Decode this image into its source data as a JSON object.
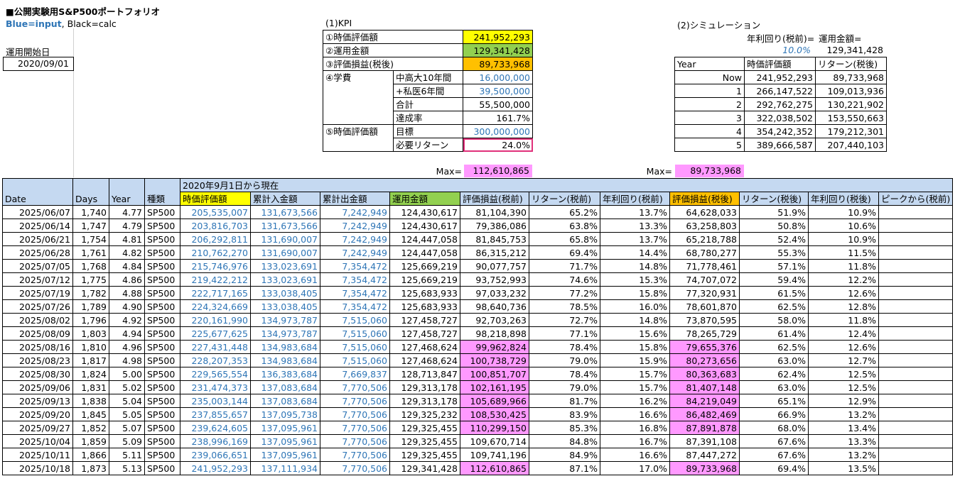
{
  "title": "■公開実験用S&P500ポートフォリオ",
  "legend": {
    "blue": "Blue=input",
    "sep": ",",
    "black": " Black=calc"
  },
  "start_label": "運用開始日",
  "start_date": "2020/09/01",
  "kpi": {
    "title": "(1)KPI",
    "rows": [
      {
        "label": "①時価評価額",
        "sub": "",
        "value": "241,952,293",
        "hl": "yel",
        "blue": false
      },
      {
        "label": "②運用金額",
        "sub": "",
        "value": "129,341,428",
        "hl": "grn",
        "blue": false
      },
      {
        "label": "③評価損益(税後)",
        "sub": "",
        "value": "89,733,968",
        "hl": "org",
        "blue": false
      },
      {
        "label": "④学費",
        "sub": "中高大10年間",
        "value": "16,000,000",
        "hl": "",
        "blue": true
      },
      {
        "label": "",
        "sub": "+私医6年間",
        "value": "39,500,000",
        "hl": "",
        "blue": true
      },
      {
        "label": "",
        "sub": "合計",
        "value": "55,500,000",
        "hl": "",
        "blue": false
      },
      {
        "label": "",
        "sub": "達成率",
        "value": "161.7%",
        "hl": "",
        "blue": false
      },
      {
        "label": "⑤時価評価額",
        "sub": "目標",
        "value": "300,000,000",
        "hl": "",
        "blue": true
      },
      {
        "label": "",
        "sub": "必要リターン",
        "value": "24.0%",
        "hl": "box",
        "blue": false
      }
    ]
  },
  "sim": {
    "title": "(2)シミュレーション",
    "rate_label": "年利回り(税前)=",
    "amount_label": "運用金額=",
    "rate": "10.0%",
    "amount": "129,341,428",
    "headers": [
      "Year",
      "時価評価額",
      "リターン(税後)"
    ],
    "rows": [
      [
        "Now",
        "241,952,293",
        "89,733,968"
      ],
      [
        "1",
        "266,147,522",
        "109,013,936"
      ],
      [
        "2",
        "292,762,275",
        "130,221,902"
      ],
      [
        "3",
        "322,038,502",
        "153,550,663"
      ],
      [
        "4",
        "354,242,352",
        "179,212,301"
      ],
      [
        "5",
        "389,666,587",
        "207,440,103"
      ]
    ]
  },
  "max": {
    "label": "Max=",
    "pre_tax": "112,610,865",
    "post_tax": "89,733,968"
  },
  "table": {
    "period": "2020年9月1日から現在",
    "headers": [
      "Date",
      "Days",
      "Year",
      "種類",
      "時価評価額",
      "累計入金額",
      "累計出金額",
      "運用金額",
      "評価損益(税前)",
      "リターン(税前)",
      "年利回り(税前)",
      "評価損益(税後)",
      "リターン(税後)",
      "年利回り(税後)",
      "ピークから(税前)"
    ],
    "rows": [
      [
        "2025/06/07",
        "1,740",
        "4.77",
        "SP500",
        "205,535,007",
        "131,673,566",
        "7,242,949",
        "124,430,617",
        "81,104,390",
        "65.2%",
        "13.7%",
        "64,628,033",
        "51.9%",
        "10.9%",
        ""
      ],
      [
        "2025/06/14",
        "1,747",
        "4.79",
        "SP500",
        "203,816,703",
        "131,673,566",
        "7,242,949",
        "124,430,617",
        "79,386,086",
        "63.8%",
        "13.3%",
        "63,258,803",
        "50.8%",
        "10.6%",
        ""
      ],
      [
        "2025/06/21",
        "1,754",
        "4.81",
        "SP500",
        "206,292,811",
        "131,690,007",
        "7,242,949",
        "124,447,058",
        "81,845,753",
        "65.8%",
        "13.7%",
        "65,218,788",
        "52.4%",
        "10.9%",
        ""
      ],
      [
        "2025/06/28",
        "1,761",
        "4.82",
        "SP500",
        "210,762,270",
        "131,690,007",
        "7,242,949",
        "124,447,058",
        "86,315,212",
        "69.4%",
        "14.4%",
        "68,780,277",
        "55.3%",
        "11.5%",
        ""
      ],
      [
        "2025/07/05",
        "1,768",
        "4.84",
        "SP500",
        "215,746,976",
        "133,023,691",
        "7,354,472",
        "125,669,219",
        "90,077,757",
        "71.7%",
        "14.8%",
        "71,778,461",
        "57.1%",
        "11.8%",
        ""
      ],
      [
        "2025/07/12",
        "1,775",
        "4.86",
        "SP500",
        "219,422,212",
        "133,023,691",
        "7,354,472",
        "125,669,219",
        "93,752,993",
        "74.6%",
        "15.3%",
        "74,707,072",
        "59.4%",
        "12.2%",
        ""
      ],
      [
        "2025/07/19",
        "1,782",
        "4.88",
        "SP500",
        "222,717,165",
        "133,038,405",
        "7,354,472",
        "125,683,933",
        "97,033,232",
        "77.2%",
        "15.8%",
        "77,320,931",
        "61.5%",
        "12.6%",
        ""
      ],
      [
        "2025/07/26",
        "1,789",
        "4.90",
        "SP500",
        "224,324,669",
        "133,038,405",
        "7,354,472",
        "125,683,933",
        "98,640,736",
        "78.5%",
        "16.0%",
        "78,601,870",
        "62.5%",
        "12.8%",
        ""
      ],
      [
        "2025/08/02",
        "1,796",
        "4.92",
        "SP500",
        "220,161,990",
        "134,973,787",
        "7,515,060",
        "127,458,727",
        "92,703,263",
        "72.7%",
        "14.8%",
        "73,870,595",
        "58.0%",
        "11.8%",
        ""
      ],
      [
        "2025/08/09",
        "1,803",
        "4.94",
        "SP500",
        "225,677,625",
        "134,973,787",
        "7,515,060",
        "127,458,727",
        "98,218,898",
        "77.1%",
        "15.6%",
        "78,265,729",
        "61.4%",
        "12.4%",
        ""
      ],
      [
        "2025/08/16",
        "1,810",
        "4.96",
        "SP500",
        "227,431,448",
        "134,983,684",
        "7,515,060",
        "127,468,624",
        "99,962,824",
        "78.4%",
        "15.8%",
        "79,655,376",
        "62.5%",
        "12.6%",
        ""
      ],
      [
        "2025/08/23",
        "1,817",
        "4.98",
        "SP500",
        "228,207,353",
        "134,983,684",
        "7,515,060",
        "127,468,624",
        "100,738,729",
        "79.0%",
        "15.9%",
        "80,273,656",
        "63.0%",
        "12.7%",
        ""
      ],
      [
        "2025/08/30",
        "1,824",
        "5.00",
        "SP500",
        "229,565,554",
        "136,383,684",
        "7,669,837",
        "128,713,847",
        "100,851,707",
        "78.4%",
        "15.7%",
        "80,363,683",
        "62.4%",
        "12.5%",
        ""
      ],
      [
        "2025/09/06",
        "1,831",
        "5.02",
        "SP500",
        "231,474,373",
        "137,083,684",
        "7,770,506",
        "129,313,178",
        "102,161,195",
        "79.0%",
        "15.7%",
        "81,407,148",
        "63.0%",
        "12.5%",
        ""
      ],
      [
        "2025/09/13",
        "1,838",
        "5.04",
        "SP500",
        "235,003,144",
        "137,083,684",
        "7,770,506",
        "129,313,178",
        "105,689,966",
        "81.7%",
        "16.2%",
        "84,219,049",
        "65.1%",
        "12.9%",
        ""
      ],
      [
        "2025/09/20",
        "1,845",
        "5.05",
        "SP500",
        "237,855,657",
        "137,095,738",
        "7,770,506",
        "129,325,232",
        "108,530,425",
        "83.9%",
        "16.6%",
        "86,482,469",
        "66.9%",
        "13.2%",
        ""
      ],
      [
        "2025/09/27",
        "1,852",
        "5.07",
        "SP500",
        "239,624,605",
        "137,095,961",
        "7,770,506",
        "129,325,455",
        "110,299,150",
        "85.3%",
        "16.8%",
        "87,891,878",
        "68.0%",
        "13.4%",
        ""
      ],
      [
        "2025/10/04",
        "1,859",
        "5.09",
        "SP500",
        "238,996,169",
        "137,095,961",
        "7,770,506",
        "129,325,455",
        "109,670,714",
        "84.8%",
        "16.7%",
        "87,391,108",
        "67.6%",
        "13.3%",
        ""
      ],
      [
        "2025/10/11",
        "1,866",
        "5.11",
        "SP500",
        "239,066,651",
        "137,095,961",
        "7,770,506",
        "129,325,455",
        "109,741,196",
        "84.9%",
        "16.6%",
        "87,447,272",
        "67.6%",
        "13.2%",
        ""
      ],
      [
        "2025/10/18",
        "1,873",
        "5.13",
        "SP500",
        "241,952,293",
        "137,111,934",
        "7,770,506",
        "129,341,428",
        "112,610,865",
        "87.1%",
        "17.0%",
        "89,733,968",
        "69.4%",
        "13.5%",
        ""
      ]
    ],
    "peak_flags": [
      0,
      0,
      0,
      0,
      0,
      0,
      0,
      0,
      0,
      0,
      1,
      1,
      1,
      1,
      1,
      1,
      1,
      0,
      0,
      1
    ]
  },
  "colors": {
    "blue_input": "#2e75b6",
    "header_bg": "#c5d9f1",
    "yellow": "#ffff00",
    "green": "#92d050",
    "orange": "#ffc000",
    "pink": "#ff99ff",
    "target_border": "#e0307a"
  }
}
